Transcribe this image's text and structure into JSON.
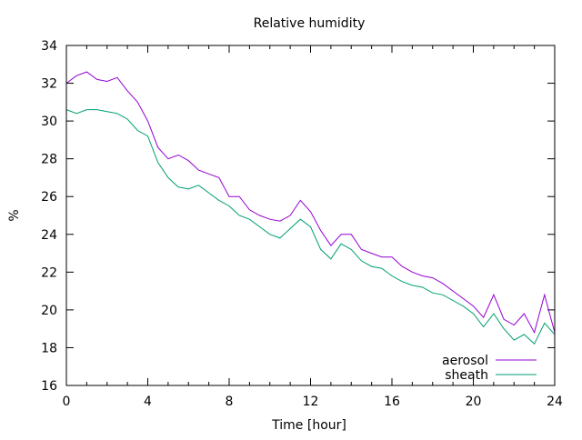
{
  "chart_data": {
    "type": "line",
    "title": "Relative humidity",
    "xlabel": "Time [hour]",
    "ylabel": "%",
    "xlim": [
      0,
      24
    ],
    "ylim": [
      16,
      34
    ],
    "xticks": [
      0,
      4,
      8,
      12,
      16,
      20,
      24
    ],
    "yticks": [
      16,
      18,
      20,
      22,
      24,
      26,
      28,
      30,
      32,
      34
    ],
    "grid": false,
    "legend_position": "bottom-right",
    "x": [
      0,
      0.5,
      1,
      1.5,
      2,
      2.5,
      3,
      3.5,
      4,
      4.5,
      5,
      5.5,
      6,
      6.5,
      7,
      7.5,
      8,
      8.5,
      9,
      9.5,
      10,
      10.5,
      11,
      11.5,
      12,
      12.5,
      13,
      13.5,
      14,
      14.5,
      15,
      15.5,
      16,
      16.5,
      17,
      17.5,
      18,
      18.5,
      19,
      19.5,
      20,
      20.5,
      21,
      21.5,
      22,
      22.5,
      23,
      23.5,
      24
    ],
    "series": [
      {
        "name": "aerosol",
        "color": "#9400d3",
        "values": [
          32.0,
          32.4,
          32.6,
          32.2,
          32.1,
          32.3,
          31.6,
          31.0,
          30.0,
          28.6,
          28.0,
          28.2,
          27.9,
          27.4,
          27.2,
          27.0,
          26.0,
          26.0,
          25.3,
          25.0,
          24.8,
          24.7,
          25.0,
          25.8,
          25.2,
          24.2,
          23.4,
          24.0,
          24.0,
          23.2,
          23.0,
          22.8,
          22.8,
          22.3,
          22.0,
          21.8,
          21.7,
          21.4,
          21.0,
          20.6,
          20.2,
          19.6,
          20.8,
          19.5,
          19.2,
          19.8,
          18.8,
          20.8,
          18.8
        ]
      },
      {
        "name": "sheath",
        "color": "#009e73",
        "values": [
          30.6,
          30.4,
          30.6,
          30.6,
          30.5,
          30.4,
          30.1,
          29.5,
          29.2,
          27.8,
          27.0,
          26.5,
          26.4,
          26.6,
          26.2,
          25.8,
          25.5,
          25.0,
          24.8,
          24.4,
          24.0,
          23.8,
          24.3,
          24.8,
          24.4,
          23.2,
          22.7,
          23.5,
          23.2,
          22.6,
          22.3,
          22.2,
          21.8,
          21.5,
          21.3,
          21.2,
          20.9,
          20.8,
          20.5,
          20.2,
          19.8,
          19.1,
          19.8,
          19.0,
          18.4,
          18.7,
          18.2,
          19.3,
          18.7
        ]
      }
    ]
  }
}
